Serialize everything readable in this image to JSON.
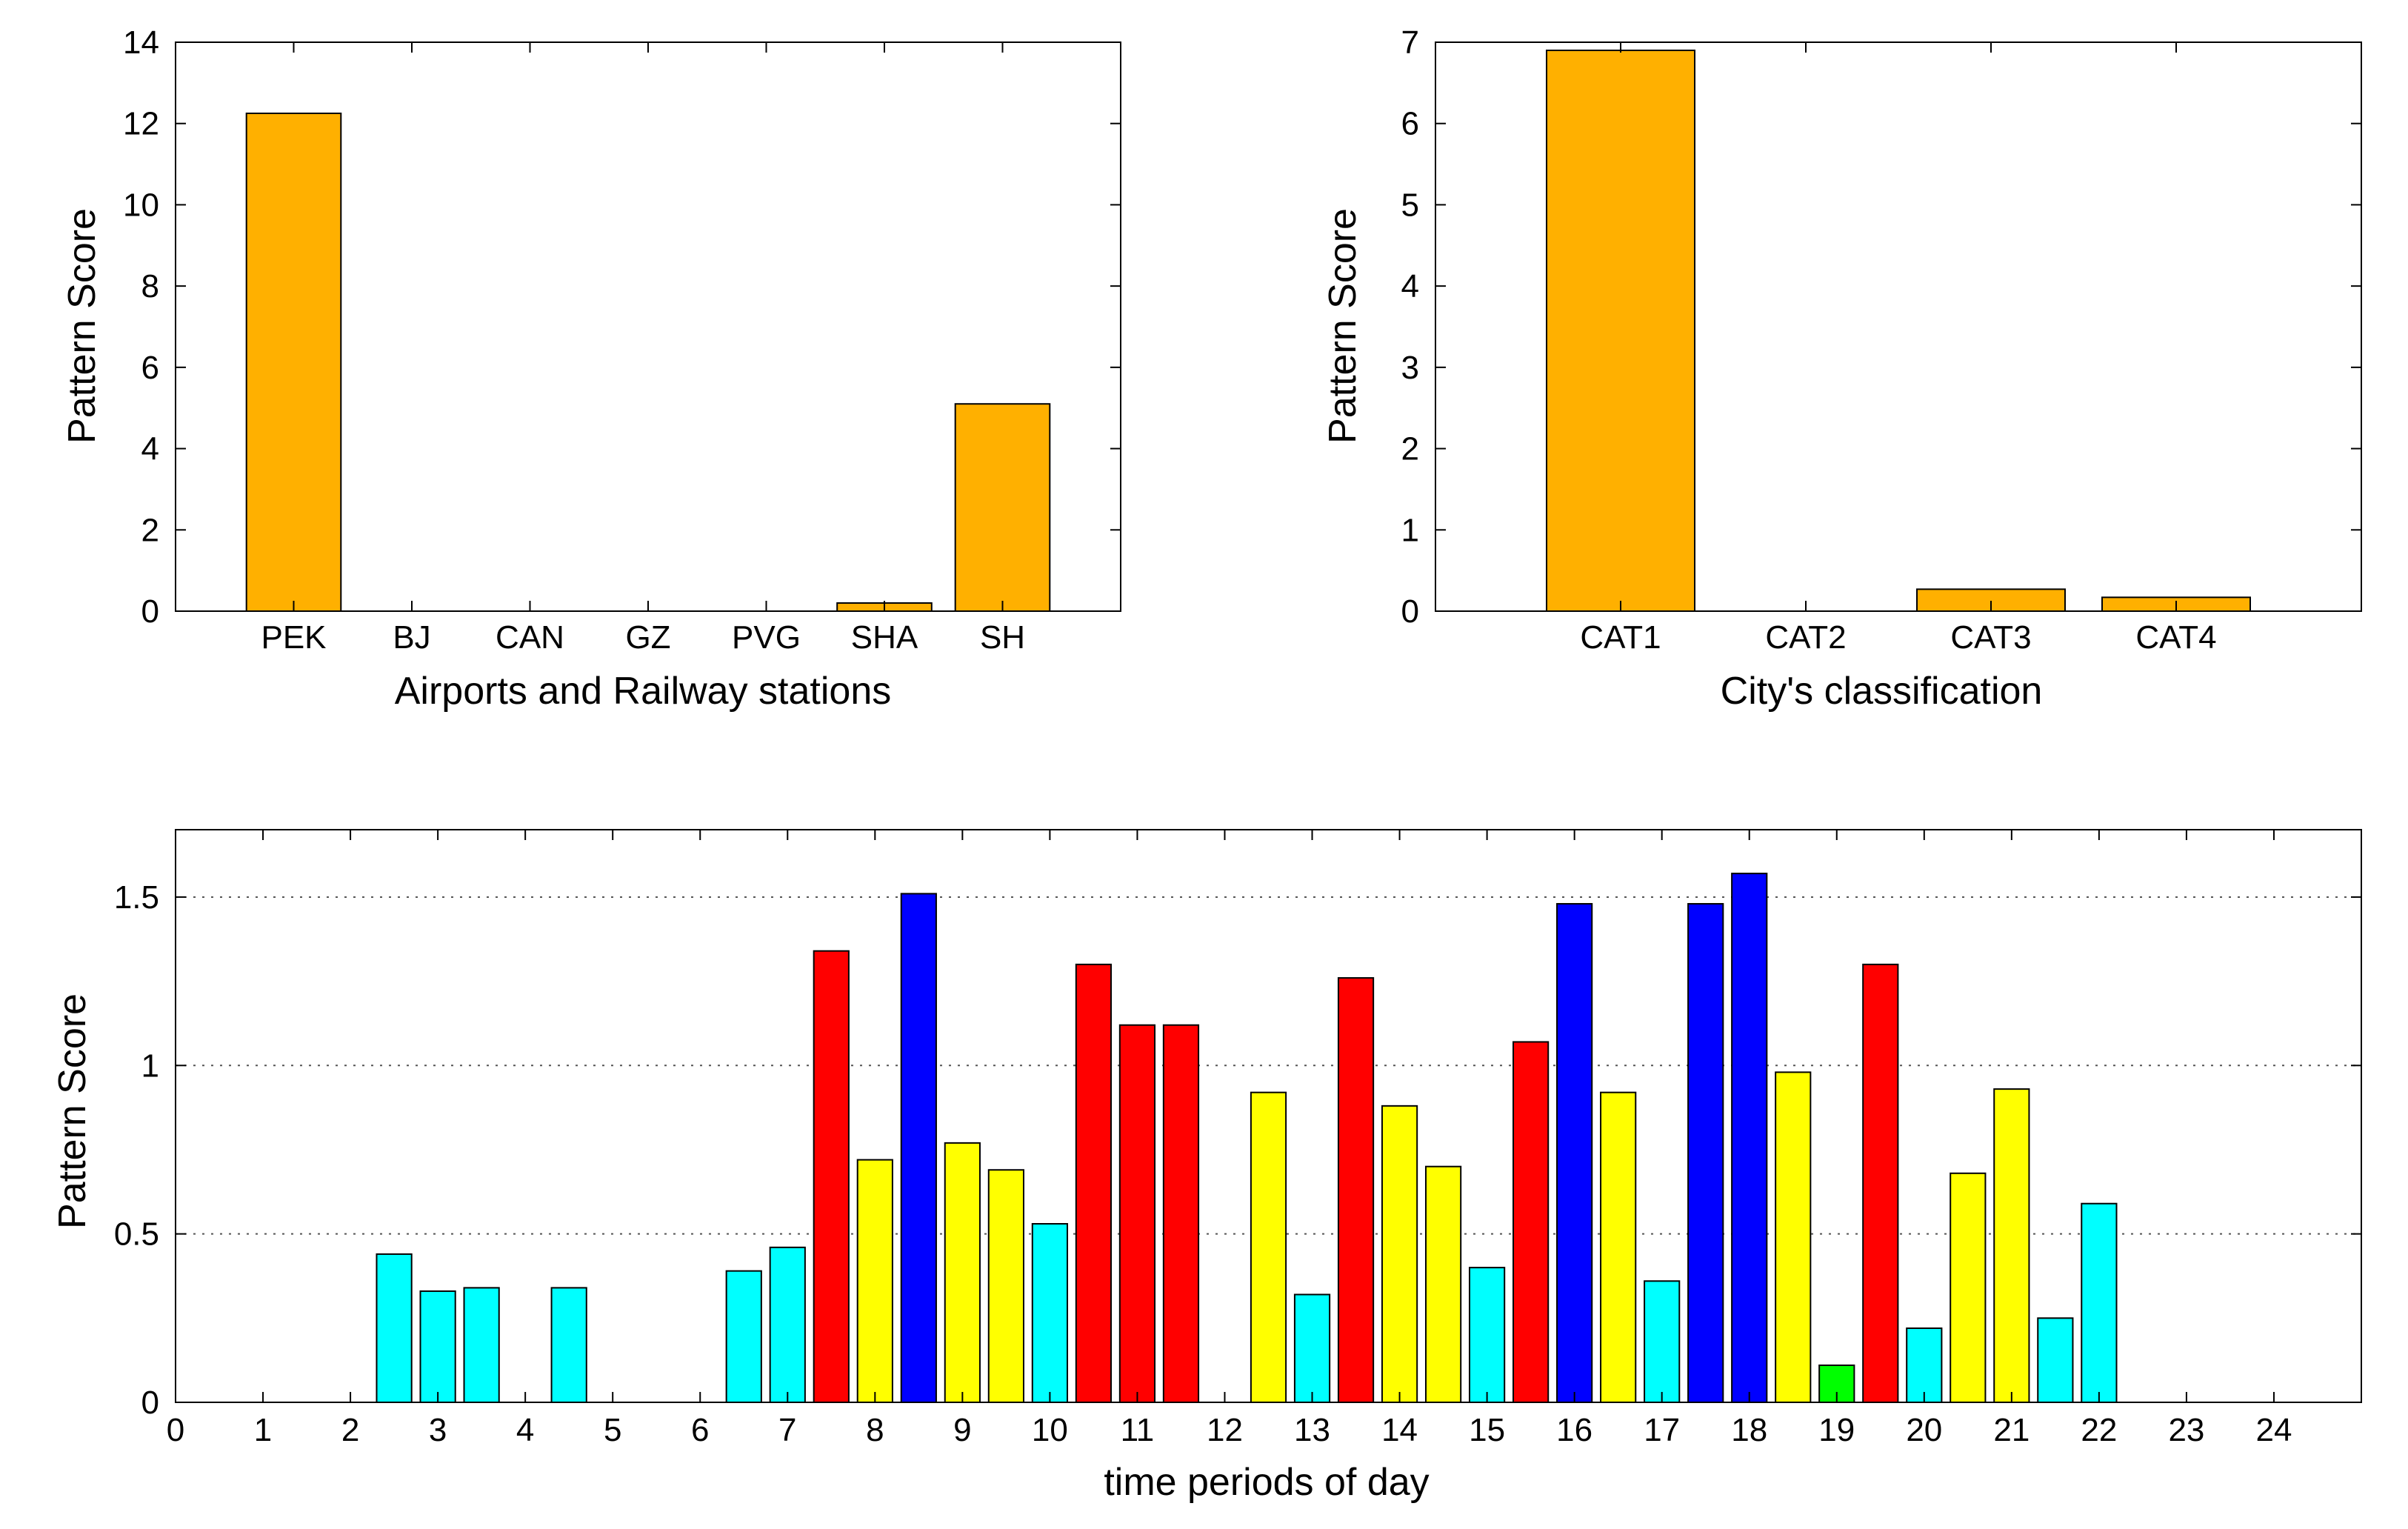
{
  "chart_data": [
    {
      "type": "bar",
      "title": "",
      "xlabel": "Airports and Railway stations",
      "ylabel": "Pattern Score",
      "categories": [
        "PEK",
        "BJ",
        "CAN",
        "GZ",
        "PVG",
        "SHA",
        "SH"
      ],
      "values": [
        12.25,
        0,
        0,
        0,
        0,
        0.2,
        5.1
      ],
      "ylim": [
        0,
        14
      ],
      "yticks": [
        "0",
        "2",
        "4",
        "6",
        "8",
        "10",
        "12",
        "14"
      ],
      "bar_color": "#FFB000",
      "grid": false
    },
    {
      "type": "bar",
      "title": "",
      "xlabel": "City's classification",
      "ylabel": "Pattern Score",
      "categories": [
        "CAT1",
        "CAT2",
        "CAT3",
        "CAT4"
      ],
      "values": [
        6.9,
        0,
        0.27,
        0.17
      ],
      "ylim": [
        0,
        7
      ],
      "yticks": [
        "0",
        "1",
        "2",
        "3",
        "4",
        "5",
        "6",
        "7"
      ],
      "bar_color": "#FFB000",
      "grid": false
    },
    {
      "type": "bar",
      "title": "",
      "xlabel": "time periods of day",
      "ylabel": "Pattern Score",
      "xlim": [
        0,
        25
      ],
      "xticks": [
        "0",
        "1",
        "2",
        "3",
        "4",
        "5",
        "6",
        "7",
        "8",
        "9",
        "10",
        "11",
        "12",
        "13",
        "14",
        "15",
        "16",
        "17",
        "18",
        "19",
        "20",
        "21",
        "22",
        "23",
        "24"
      ],
      "ylim": [
        0,
        1.7
      ],
      "yticks": [
        "0",
        "0.5",
        "1",
        "1.5"
      ],
      "ytick_values": [
        0,
        0.5,
        1,
        1.5
      ],
      "grid": "horizontal dotted",
      "colors": {
        "cyan": "#00FFFF",
        "yellow": "#FFFF00",
        "red": "#FF0000",
        "blue": "#0000FF",
        "green": "#00FF00"
      },
      "bars": [
        {
          "x": 2.5,
          "value": 0.44,
          "color": "cyan"
        },
        {
          "x": 3.0,
          "value": 0.33,
          "color": "cyan"
        },
        {
          "x": 3.5,
          "value": 0.34,
          "color": "cyan"
        },
        {
          "x": 4.5,
          "value": 0.34,
          "color": "cyan"
        },
        {
          "x": 6.5,
          "value": 0.39,
          "color": "cyan"
        },
        {
          "x": 7.0,
          "value": 0.46,
          "color": "cyan"
        },
        {
          "x": 7.5,
          "value": 1.34,
          "color": "red"
        },
        {
          "x": 8.0,
          "value": 0.72,
          "color": "yellow"
        },
        {
          "x": 8.5,
          "value": 1.51,
          "color": "blue"
        },
        {
          "x": 9.0,
          "value": 0.77,
          "color": "yellow"
        },
        {
          "x": 9.5,
          "value": 0.69,
          "color": "yellow"
        },
        {
          "x": 10.0,
          "value": 0.53,
          "color": "cyan"
        },
        {
          "x": 10.5,
          "value": 1.3,
          "color": "red"
        },
        {
          "x": 11.0,
          "value": 1.12,
          "color": "red"
        },
        {
          "x": 11.5,
          "value": 1.12,
          "color": "red"
        },
        {
          "x": 12.5,
          "value": 0.92,
          "color": "yellow"
        },
        {
          "x": 13.0,
          "value": 0.32,
          "color": "cyan"
        },
        {
          "x": 13.5,
          "value": 1.26,
          "color": "red"
        },
        {
          "x": 14.0,
          "value": 0.88,
          "color": "yellow"
        },
        {
          "x": 14.5,
          "value": 0.7,
          "color": "yellow"
        },
        {
          "x": 15.0,
          "value": 0.4,
          "color": "cyan"
        },
        {
          "x": 15.5,
          "value": 1.07,
          "color": "red"
        },
        {
          "x": 16.0,
          "value": 1.48,
          "color": "blue"
        },
        {
          "x": 16.5,
          "value": 0.92,
          "color": "yellow"
        },
        {
          "x": 17.0,
          "value": 0.36,
          "color": "cyan"
        },
        {
          "x": 17.5,
          "value": 1.48,
          "color": "blue"
        },
        {
          "x": 18.0,
          "value": 1.57,
          "color": "blue"
        },
        {
          "x": 18.5,
          "value": 0.98,
          "color": "yellow"
        },
        {
          "x": 19.0,
          "value": 0.11,
          "color": "green"
        },
        {
          "x": 19.5,
          "value": 1.3,
          "color": "red"
        },
        {
          "x": 20.0,
          "value": 0.22,
          "color": "cyan"
        },
        {
          "x": 20.5,
          "value": 0.68,
          "color": "yellow"
        },
        {
          "x": 21.0,
          "value": 0.93,
          "color": "yellow"
        },
        {
          "x": 21.5,
          "value": 0.25,
          "color": "cyan"
        },
        {
          "x": 22.0,
          "value": 0.59,
          "color": "cyan"
        }
      ]
    }
  ]
}
